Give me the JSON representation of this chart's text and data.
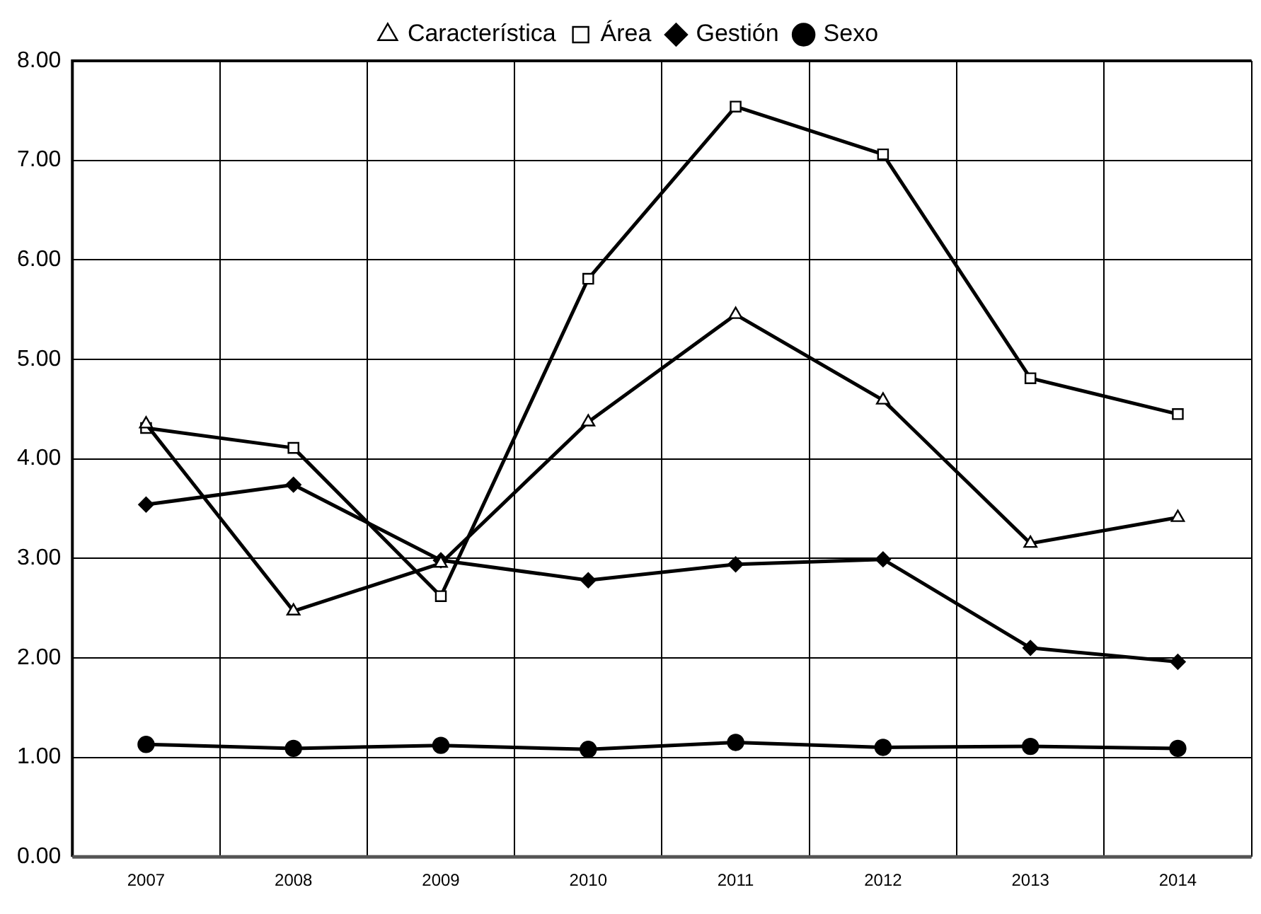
{
  "chart_data": {
    "type": "line",
    "categories": [
      "2007",
      "2008",
      "2009",
      "2010",
      "2011",
      "2012",
      "2013",
      "2014"
    ],
    "series": [
      {
        "name": "Característica",
        "color": "#000000",
        "marker": "triangle",
        "values": [
          4.35,
          2.47,
          2.95,
          4.37,
          5.45,
          4.59,
          3.15,
          3.41
        ]
      },
      {
        "name": "Área",
        "color": "#000000",
        "marker": "square",
        "values": [
          4.31,
          4.11,
          2.62,
          5.81,
          7.54,
          7.06,
          4.81,
          4.45
        ]
      },
      {
        "name": "Gestión",
        "color": "#000000",
        "marker": "diamond",
        "values": [
          3.54,
          3.74,
          2.98,
          2.78,
          2.94,
          2.99,
          2.1,
          1.96
        ]
      },
      {
        "name": "Sexo",
        "color": "#000000",
        "marker": "circle",
        "values": [
          1.13,
          1.09,
          1.12,
          1.08,
          1.15,
          1.1,
          1.11,
          1.09
        ]
      }
    ],
    "ylim": [
      0,
      8
    ],
    "yticks": [
      {
        "value": 0,
        "label": "0.00"
      },
      {
        "value": 1,
        "label": "1.00"
      },
      {
        "value": 2,
        "label": "2.00"
      },
      {
        "value": 3,
        "label": "3.00"
      },
      {
        "value": 4,
        "label": "4.00"
      },
      {
        "value": 5,
        "label": "5.00"
      },
      {
        "value": 6,
        "label": "6.00"
      },
      {
        "value": 7,
        "label": "7.00"
      },
      {
        "value": 8,
        "label": "8.00"
      }
    ],
    "grid": true,
    "legend": "top",
    "line_style": "solid"
  }
}
